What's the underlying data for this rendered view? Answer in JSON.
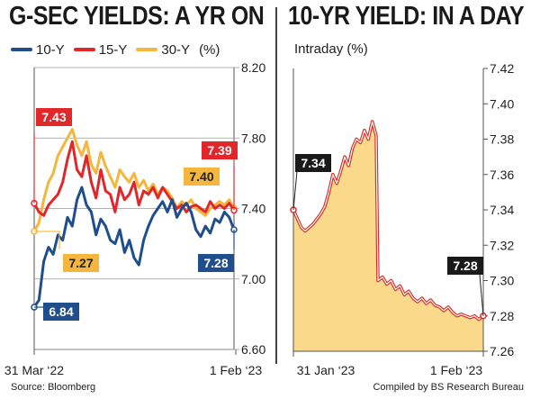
{
  "left_title": "G-SEC YIELDS: A YR ON",
  "right_title": "10-YR YIELD: IN A DAY",
  "source": "Source: Bloomberg",
  "credit": "Compiled by BS Research Bureau",
  "legend_unit": "(%)",
  "chart_data": [
    {
      "type": "line",
      "title": "G-SEC YIELDS: A YR ON",
      "ylim": [
        6.6,
        8.2
      ],
      "yticks": [
        "8.20",
        "7.80",
        "7.40",
        "7.00",
        "6.60"
      ],
      "xticks": [
        "31 Mar ‘22",
        "1 Feb ‘23"
      ],
      "grid": true,
      "colors": {
        "10-Y": "#1f4e8c",
        "15-Y": "#e2272a",
        "30-Y": "#f5b63d"
      },
      "series": [
        {
          "name": "10-Y",
          "color": "#1f4e8c",
          "values": [
            6.84,
            6.88,
            7.1,
            7.18,
            7.14,
            7.25,
            7.22,
            7.35,
            7.3,
            7.45,
            7.52,
            7.42,
            7.38,
            7.25,
            7.34,
            7.3,
            7.22,
            7.2,
            7.28,
            7.15,
            7.22,
            7.12,
            7.08,
            7.22,
            7.3,
            7.36,
            7.4,
            7.44,
            7.38,
            7.45,
            7.35,
            7.4,
            7.43,
            7.38,
            7.28,
            7.24,
            7.3,
            7.26,
            7.34,
            7.32,
            7.38,
            7.35,
            7.28
          ],
          "start_label": "6.84",
          "end_label": "7.28"
        },
        {
          "name": "15-Y",
          "color": "#e2272a",
          "values": [
            7.43,
            7.38,
            7.36,
            7.42,
            7.45,
            7.48,
            7.55,
            7.68,
            7.78,
            7.62,
            7.58,
            7.7,
            7.55,
            7.46,
            7.62,
            7.5,
            7.48,
            7.38,
            7.52,
            7.45,
            7.48,
            7.55,
            7.42,
            7.5,
            7.48,
            7.52,
            7.46,
            7.52,
            7.48,
            7.44,
            7.4,
            7.42,
            7.38,
            7.41,
            7.42,
            7.4,
            7.38,
            7.44,
            7.4,
            7.42,
            7.4,
            7.43,
            7.39
          ],
          "start_label": "7.43",
          "end_label": "7.39"
        },
        {
          "name": "30-Y",
          "color": "#f5b63d",
          "values": [
            7.27,
            7.32,
            7.45,
            7.55,
            7.6,
            7.7,
            7.75,
            7.8,
            7.85,
            7.76,
            7.7,
            7.78,
            7.65,
            7.6,
            7.72,
            7.64,
            7.58,
            7.52,
            7.62,
            7.58,
            7.55,
            7.6,
            7.52,
            7.56,
            7.5,
            7.54,
            7.48,
            7.52,
            7.5,
            7.46,
            7.4,
            7.44,
            7.42,
            7.45,
            7.4,
            7.38,
            7.36,
            7.4,
            7.42,
            7.44,
            7.42,
            7.45,
            7.4
          ],
          "start_label": "7.27",
          "end_label": "7.40"
        }
      ]
    },
    {
      "type": "area",
      "title": "10-YR YIELD: IN A DAY",
      "subtitle": "Intraday (%)",
      "ylim": [
        7.26,
        7.42
      ],
      "yticks": [
        "7.42",
        "7.40",
        "7.38",
        "7.36",
        "7.34",
        "7.32",
        "7.30",
        "7.28",
        "7.26"
      ],
      "xticks": [
        "31 Jan ‘23",
        "1 Feb ‘23"
      ],
      "grid": false,
      "fill_color": "#fbd98a",
      "line_color": "#d62b27",
      "series": [
        {
          "name": "10-Y intraday",
          "values": [
            7.34,
            7.335,
            7.33,
            7.328,
            7.33,
            7.332,
            7.335,
            7.338,
            7.342,
            7.35,
            7.36,
            7.355,
            7.362,
            7.37,
            7.365,
            7.375,
            7.38,
            7.378,
            7.385,
            7.38,
            7.39,
            7.382,
            7.3,
            7.302,
            7.298,
            7.3,
            7.295,
            7.297,
            7.292,
            7.294,
            7.29,
            7.288,
            7.29,
            7.287,
            7.289,
            7.286,
            7.285,
            7.283,
            7.285,
            7.282,
            7.28,
            7.281,
            7.28,
            7.279,
            7.28,
            7.278,
            7.28
          ],
          "start_label": "7.34",
          "end_label": "7.28"
        }
      ]
    }
  ]
}
